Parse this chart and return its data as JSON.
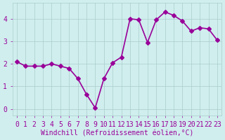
{
  "x": [
    0,
    1,
    2,
    3,
    4,
    5,
    6,
    7,
    8,
    9,
    10,
    11,
    12,
    13,
    14,
    15,
    16,
    17,
    18,
    19,
    20,
    21,
    22,
    23
  ],
  "y": [
    2.1,
    1.9,
    1.9,
    1.9,
    2.0,
    1.9,
    1.8,
    1.35,
    0.65,
    0.05,
    1.35,
    2.05,
    2.3,
    4.0,
    3.95,
    2.95,
    3.95,
    4.3,
    4.15,
    3.9,
    3.45,
    3.6,
    3.55,
    3.05
  ],
  "line_color": "#990099",
  "marker": "D",
  "marker_size": 3,
  "line_width": 1.2,
  "xlabel": "Windchill (Refroidissement éolien,°C)",
  "xlim": [
    -0.5,
    23.5
  ],
  "ylim": [
    -0.3,
    4.7
  ],
  "yticks": [
    0,
    1,
    2,
    3,
    4
  ],
  "xticks": [
    0,
    1,
    2,
    3,
    4,
    5,
    6,
    7,
    8,
    9,
    10,
    11,
    12,
    13,
    14,
    15,
    16,
    17,
    18,
    19,
    20,
    21,
    22,
    23
  ],
  "background_color": "#d0eeee",
  "grid_color": "#aacccc",
  "font_color": "#990099",
  "font_size": 7
}
